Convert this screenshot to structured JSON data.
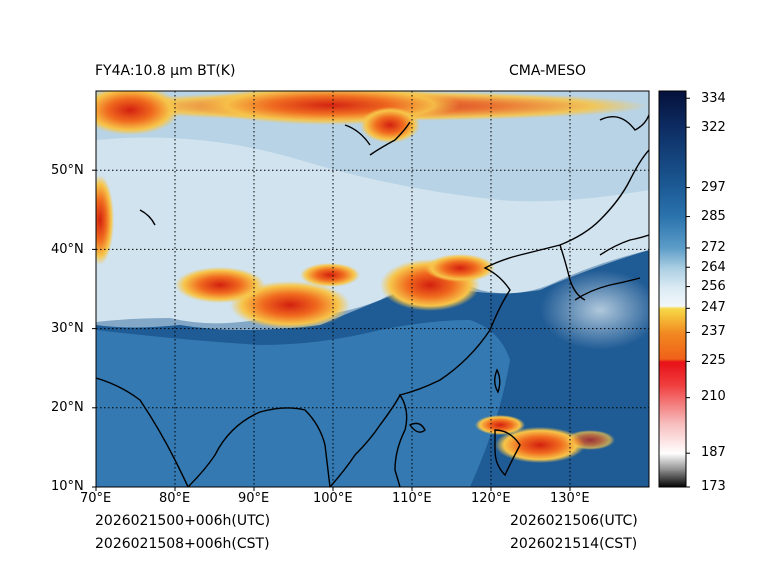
{
  "header": {
    "product_label": "FY4A:10.8 µm BT(K)",
    "model_label": "CMA-MESO"
  },
  "footer": {
    "init_utc": "2026021500+006h(UTC)",
    "init_cst": "2026021508+006h(CST)",
    "valid_utc": "2026021506(UTC)",
    "valid_cst": "2026021514(CST)"
  },
  "map": {
    "lon_range": [
      70,
      140
    ],
    "lat_range": [
      10,
      60
    ],
    "lon_ticks": [
      "70°E",
      "80°E",
      "90°E",
      "100°E",
      "110°E",
      "120°E",
      "130°E"
    ],
    "lat_ticks": [
      "10°N",
      "20°N",
      "30°N",
      "40°N",
      "50°N"
    ],
    "colors": {
      "ocean_dark": "#1f5b95",
      "land_warm": "#3d86bd",
      "cloud_light": "#c9e0ee",
      "cloud_cold": "#e8f3f8",
      "convective_orange": "#f2a12a",
      "convective_red": "#e8281e"
    }
  },
  "colorbar": {
    "label_values": [
      "334",
      "322",
      "297",
      "285",
      "272",
      "264",
      "256",
      "247",
      "237",
      "225",
      "210",
      "187",
      "173"
    ],
    "range": [
      173,
      337
    ]
  }
}
